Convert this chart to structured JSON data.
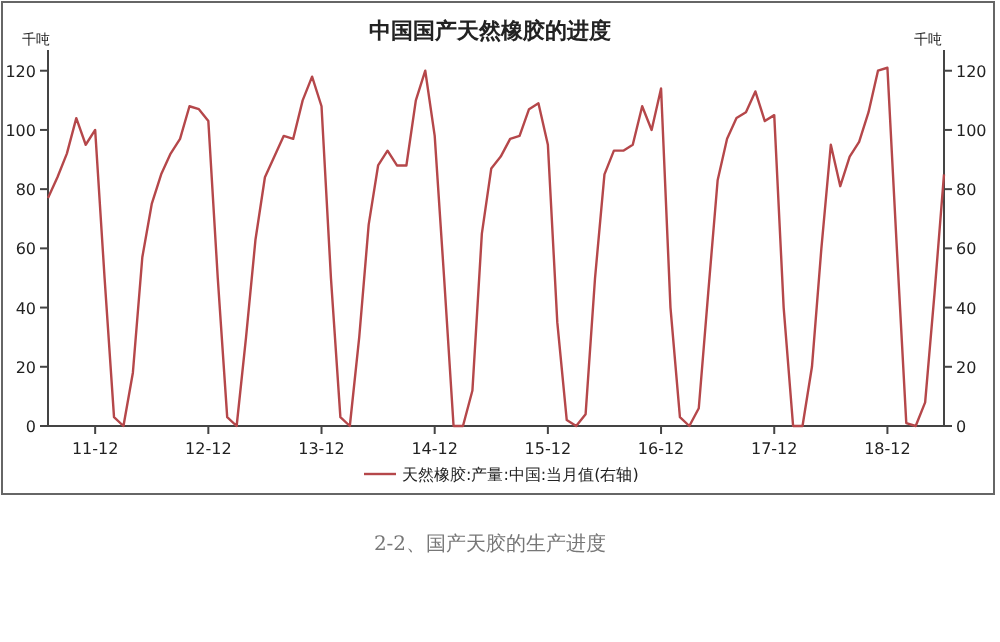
{
  "chart_data": {
    "type": "line",
    "title": "中国国产天然橡胶的进度",
    "ylabel": "千吨",
    "y2label": "千吨",
    "categories": [
      null,
      null,
      null,
      null,
      null,
      "11-12",
      null,
      null,
      null,
      null,
      null,
      null,
      null,
      null,
      null,
      null,
      null,
      "12-12",
      null,
      null,
      null,
      null,
      null,
      null,
      null,
      null,
      null,
      null,
      null,
      "13-12",
      null,
      null,
      null,
      null,
      null,
      null,
      null,
      null,
      null,
      null,
      null,
      "14-12",
      null,
      null,
      null,
      null,
      null,
      null,
      null,
      null,
      null,
      null,
      null,
      "15-12",
      null,
      null,
      null,
      null,
      null,
      null,
      null,
      null,
      null,
      null,
      null,
      "16-12",
      null,
      null,
      null,
      null,
      null,
      null,
      null,
      null,
      null,
      null,
      null,
      "17-12",
      null,
      null,
      null,
      null,
      null,
      null,
      null,
      null,
      null,
      null,
      null,
      "18-12",
      null,
      null,
      null,
      null,
      null,
      null
    ],
    "series": [
      {
        "name": "天然橡胶:产量:中国:当月值(右轴)",
        "color": "#b5474a",
        "axis": "y2",
        "values": [
          77,
          84,
          92,
          104,
          95,
          100,
          50,
          3,
          0,
          18,
          57,
          75,
          85,
          92,
          97,
          108,
          107,
          103,
          50,
          3,
          0,
          30,
          63,
          84,
          91,
          98,
          97,
          110,
          118,
          108,
          50,
          3,
          0,
          30,
          68,
          88,
          93,
          88,
          88,
          110,
          120,
          98,
          50,
          0,
          0,
          12,
          65,
          87,
          91,
          97,
          98,
          107,
          109,
          95,
          35,
          2,
          0,
          4,
          50,
          85,
          93,
          93,
          95,
          108,
          100,
          114,
          40,
          3,
          0,
          6,
          45,
          83,
          97,
          104,
          106,
          113,
          103,
          105,
          40,
          0,
          0,
          20,
          60,
          95,
          81,
          91,
          96,
          106,
          120,
          121,
          60,
          1,
          0,
          8,
          45,
          85
        ]
      }
    ],
    "ylim": [
      0,
      127
    ],
    "yticks": [
      0,
      20,
      40,
      60,
      80,
      100,
      120
    ],
    "y2lim": [
      0,
      127
    ],
    "y2ticks": [
      0,
      20,
      40,
      60,
      80,
      100,
      120
    ],
    "legend": "bottom",
    "grid": false,
    "annotations": [
      "2-2、国产天胶的生产进度"
    ]
  }
}
